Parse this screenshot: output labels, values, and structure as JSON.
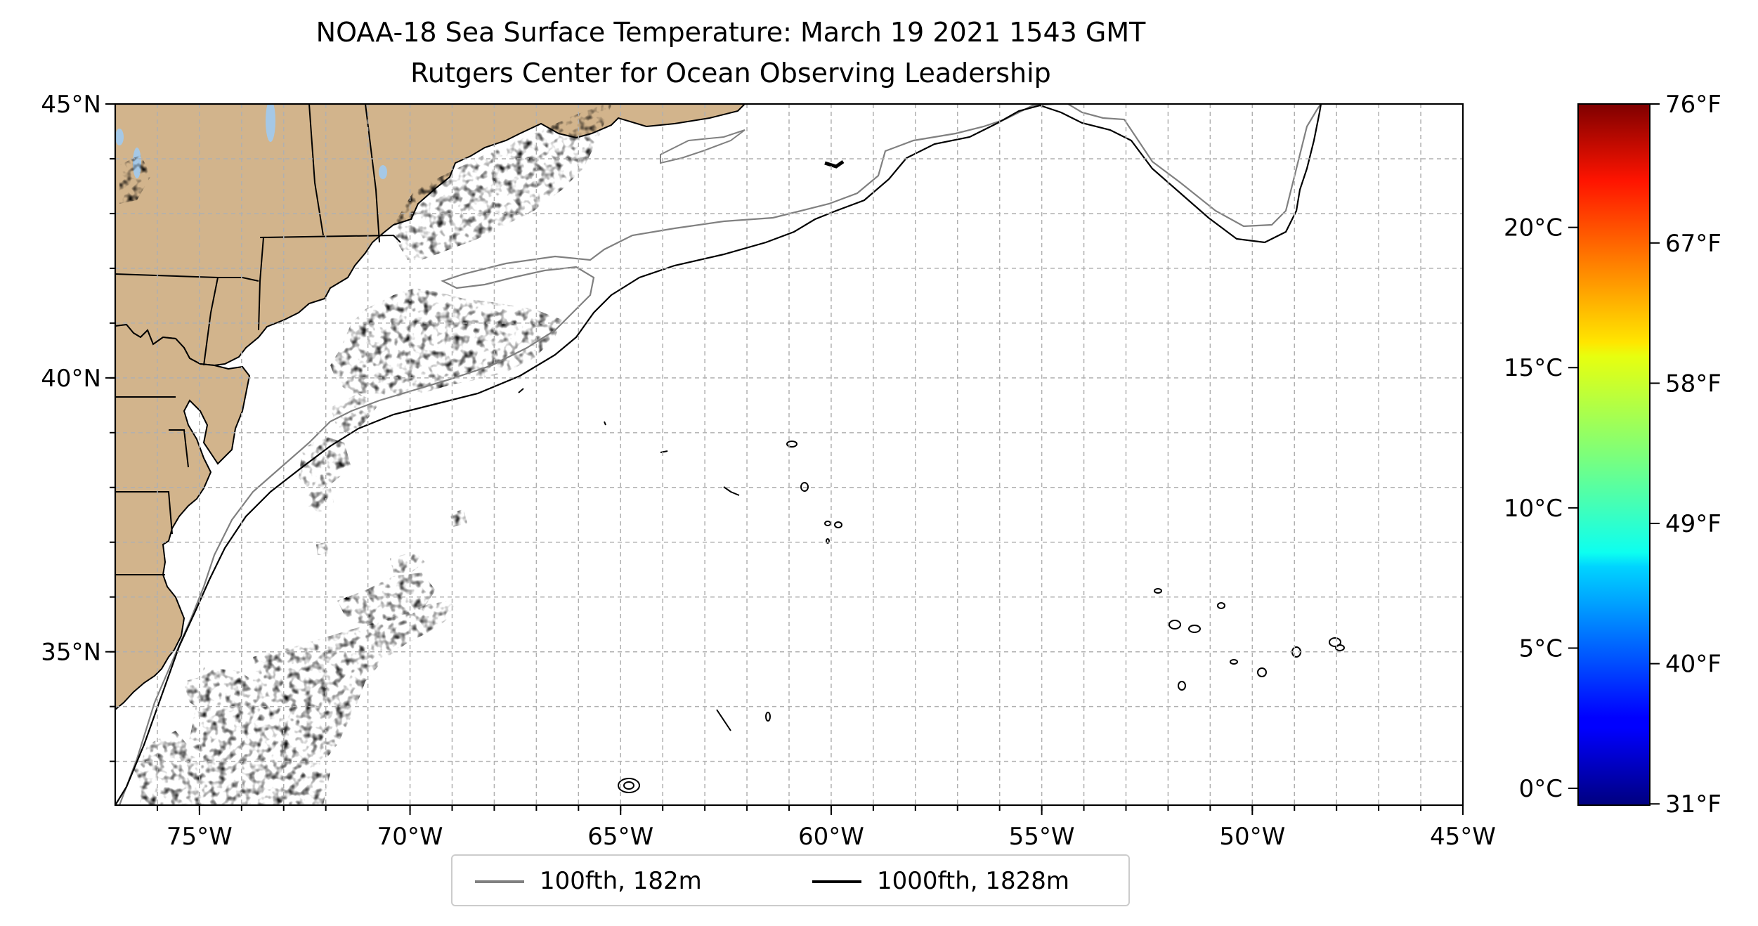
{
  "title": "NOAA-18 Sea Surface Temperature: March 19 2021 1543 GMT",
  "subtitle": "Rutgers Center for Ocean Observing Leadership",
  "map": {
    "lon_range": [
      -77,
      -45
    ],
    "lat_range": [
      32.2,
      45
    ],
    "land_color": "#d2b48c",
    "lat_ticks": [
      {
        "value": 45,
        "label": "45°N"
      },
      {
        "value": 40,
        "label": "40°N"
      },
      {
        "value": 35,
        "label": "35°N"
      }
    ],
    "lon_ticks": [
      {
        "value": -75,
        "label": "75°W"
      },
      {
        "value": -70,
        "label": "70°W"
      },
      {
        "value": -65,
        "label": "65°W"
      },
      {
        "value": -60,
        "label": "60°W"
      },
      {
        "value": -55,
        "label": "55°W"
      },
      {
        "value": -50,
        "label": "50°W"
      },
      {
        "value": -45,
        "label": "45°W"
      }
    ],
    "gridlines": true
  },
  "colorbar": {
    "colormap": "jet",
    "range_celsius": [
      -0.6,
      24.4
    ],
    "celsius_ticks": [
      {
        "value": 0,
        "label": "0°C"
      },
      {
        "value": 5,
        "label": "5°C"
      },
      {
        "value": 10,
        "label": "10°C"
      },
      {
        "value": 15,
        "label": "15°C"
      },
      {
        "value": 20,
        "label": "20°C"
      }
    ],
    "fahrenheit_ticks": [
      {
        "value": 31,
        "label": "31°F"
      },
      {
        "value": 40,
        "label": "40°F"
      },
      {
        "value": 49,
        "label": "49°F"
      },
      {
        "value": 58,
        "label": "58°F"
      },
      {
        "value": 67,
        "label": "67°F"
      },
      {
        "value": 76,
        "label": "76°F"
      }
    ]
  },
  "legend": [
    {
      "label": "100fth, 182m",
      "color": "#808080"
    },
    {
      "label": "1000fth, 1828m",
      "color": "#000000"
    }
  ]
}
